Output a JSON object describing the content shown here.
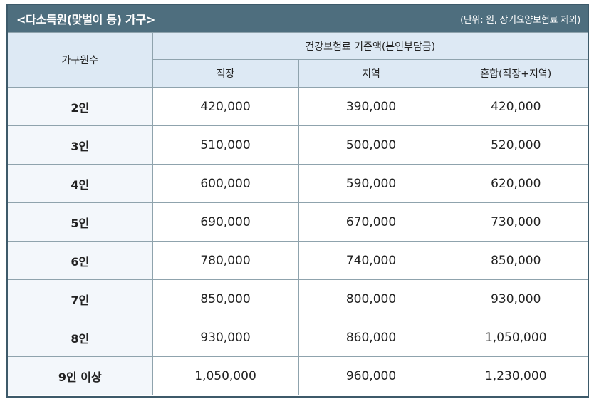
{
  "header": {
    "title": "<다소득원(맞벌이 등) 가구>",
    "unit_note": "(단위: 원, 장기요양보험료 제외)"
  },
  "table": {
    "col0_header": "가구원수",
    "group_header": "건강보험료 기준액(본인부담금)",
    "sub_headers": [
      "직장",
      "지역",
      "혼합(직장+지역)"
    ],
    "rows": [
      {
        "label": "2인",
        "values": [
          "420,000",
          "390,000",
          "420,000"
        ]
      },
      {
        "label": "3인",
        "values": [
          "510,000",
          "500,000",
          "520,000"
        ]
      },
      {
        "label": "4인",
        "values": [
          "600,000",
          "590,000",
          "620,000"
        ]
      },
      {
        "label": "5인",
        "values": [
          "690,000",
          "670,000",
          "730,000"
        ]
      },
      {
        "label": "6인",
        "values": [
          "780,000",
          "740,000",
          "850,000"
        ]
      },
      {
        "label": "7인",
        "values": [
          "850,000",
          "800,000",
          "930,000"
        ]
      },
      {
        "label": "8인",
        "values": [
          "930,000",
          "860,000",
          "1,050,000"
        ]
      },
      {
        "label": "9인 이상",
        "values": [
          "1,050,000",
          "960,000",
          "1,230,000"
        ]
      }
    ]
  }
}
